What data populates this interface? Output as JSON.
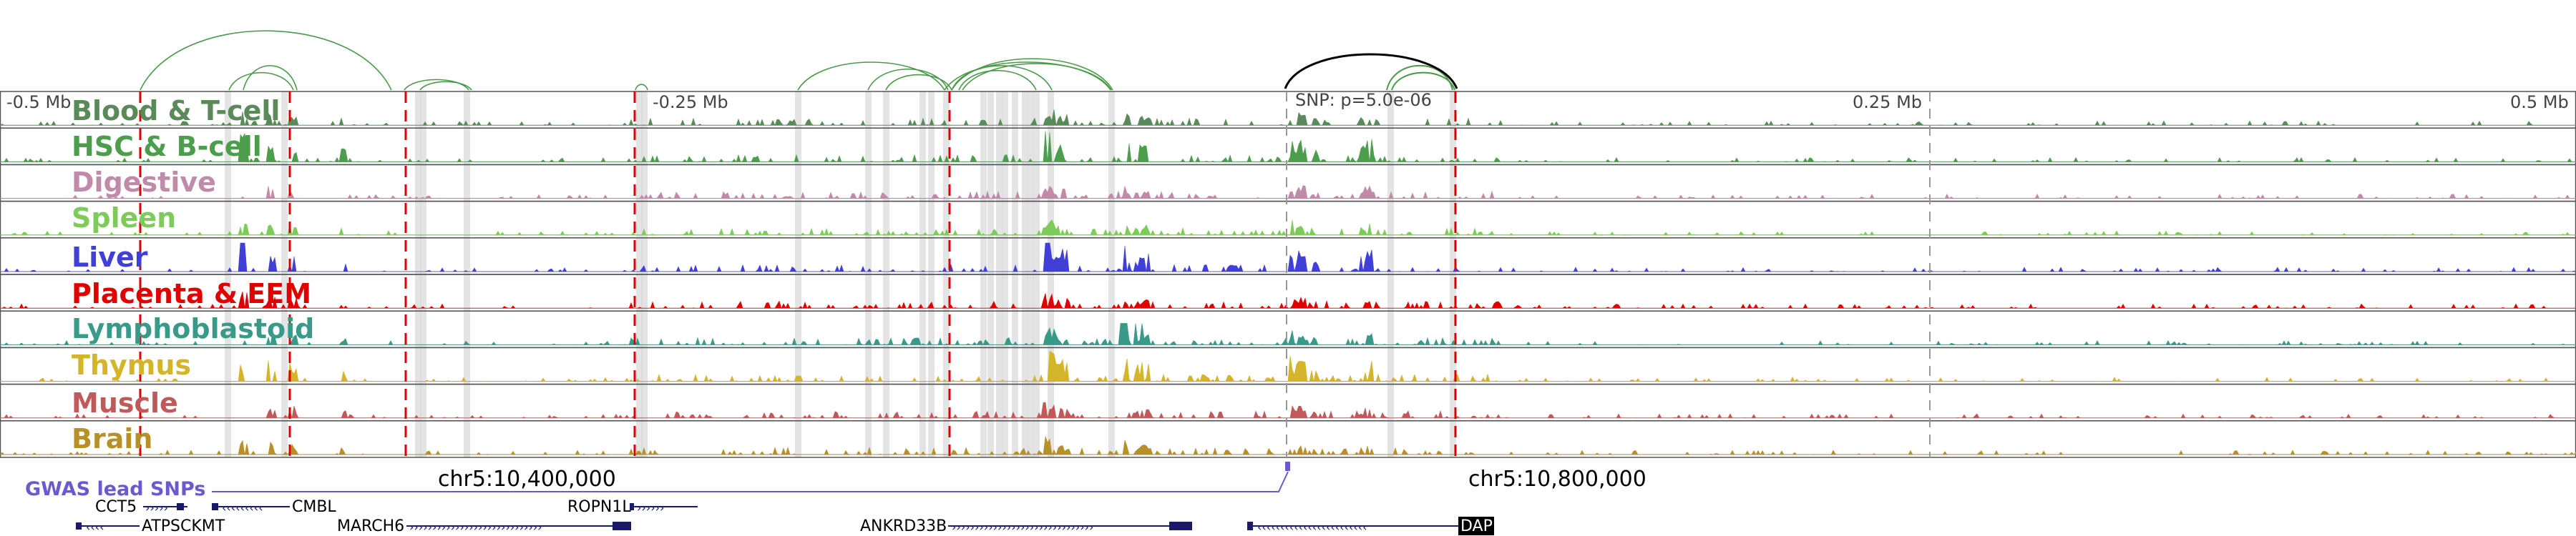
{
  "axis": {
    "left_label": "-0.5 Mb",
    "mid_left_label": "-0.25 Mb",
    "snp_label": "SNP: p=5.0e-06",
    "mid_right_label": "0.25 Mb",
    "right_label": "0.5 Mb"
  },
  "coordinates": {
    "left": "chr5:10,400,000",
    "right": "chr5:10,800,000"
  },
  "gwas": {
    "label": "GWAS lead SNPs"
  },
  "tracks": [
    {
      "name": "Blood & T-cell",
      "color": "#5a8a5a"
    },
    {
      "name": "HSC & B-cell",
      "color": "#4c9e4c"
    },
    {
      "name": "Digestive",
      "color": "#c08aa8"
    },
    {
      "name": "Spleen",
      "color": "#7dcc5a"
    },
    {
      "name": "Liver",
      "color": "#4040d8"
    },
    {
      "name": "Placenta & EEM",
      "color": "#e00000"
    },
    {
      "name": "Lymphoblastoid",
      "color": "#3a9a8a"
    },
    {
      "name": "Thymus",
      "color": "#d4b428"
    },
    {
      "name": "Muscle",
      "color": "#c05a5a"
    },
    {
      "name": "Brain",
      "color": "#b8902a"
    }
  ],
  "genes": [
    {
      "name": "CCT5"
    },
    {
      "name": "CMBL"
    },
    {
      "name": "ROPN1L"
    },
    {
      "name": "ATPSCKMT"
    },
    {
      "name": "MARCH6"
    },
    {
      "name": "ANKRD33B"
    },
    {
      "name": "DAP"
    }
  ],
  "colors": {
    "loop_green": "#4a9a4a",
    "loop_black": "#000000",
    "highlight_red": "#dd0000",
    "gwas_purple": "#6a5acd",
    "gene_navy": "#1a1a6a"
  }
}
